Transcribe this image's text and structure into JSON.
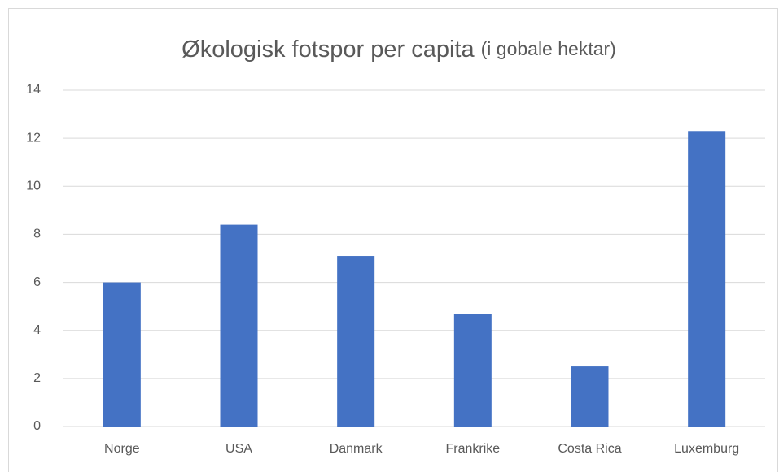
{
  "chart_data": {
    "type": "bar",
    "title": "Økologisk fotspor per capita",
    "subtitle": "(i gobale hektar)",
    "categories": [
      "Norge",
      "USA",
      "Danmark",
      "Frankrike",
      "Costa Rica",
      "Luxemburg"
    ],
    "values": [
      6.0,
      8.4,
      7.1,
      4.7,
      2.5,
      12.3
    ],
    "color": "#4472c4",
    "ylim": [
      0,
      14
    ],
    "yticks": [
      0,
      2,
      4,
      6,
      8,
      10,
      12,
      14
    ],
    "grid": true
  }
}
